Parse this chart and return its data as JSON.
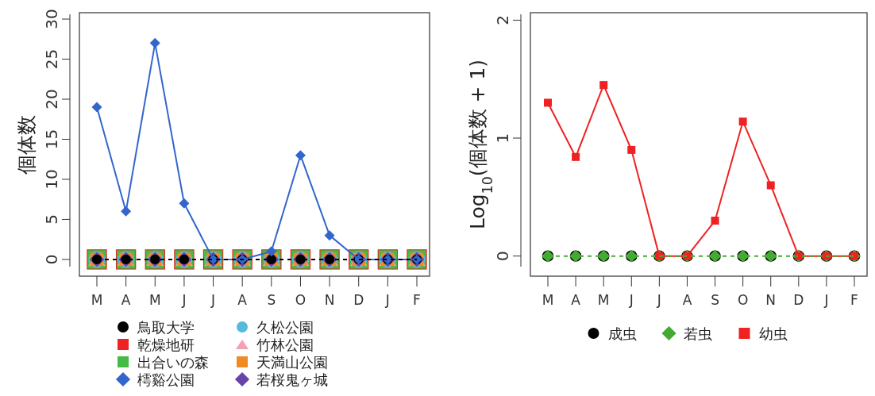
{
  "chart_data": [
    {
      "type": "line",
      "ylabel": "個体数",
      "categories": [
        "M",
        "A",
        "M",
        "J",
        "J",
        "A",
        "S",
        "O",
        "N",
        "D",
        "J",
        "F"
      ],
      "ylim": [
        -0.9,
        30.6
      ],
      "yticks": [
        0,
        5,
        10,
        15,
        20,
        25,
        30
      ],
      "legend": "bottom",
      "series": [
        {
          "name": "鳥取大学",
          "color": "#000000",
          "marker": "circle",
          "line_style": "dashed",
          "values": [
            0,
            0,
            0,
            0,
            0,
            0,
            0,
            0,
            0,
            0,
            0,
            0
          ]
        },
        {
          "name": "乾燥地研",
          "type": "scatter",
          "color": "#ee2222",
          "marker": "square",
          "values": [
            0,
            0,
            0,
            0,
            0,
            0,
            0,
            0,
            0,
            0,
            0,
            0
          ]
        },
        {
          "name": "出合いの森",
          "type": "scatter",
          "color": "#44bb44",
          "marker": "square",
          "values": [
            0,
            0,
            0,
            0,
            0,
            0,
            0,
            0,
            0,
            0,
            0,
            0
          ]
        },
        {
          "name": "樗谿公園",
          "color": "#3366cc",
          "marker": "diamond",
          "line_style": "solid",
          "values": [
            19,
            6,
            27,
            7,
            0,
            0,
            1,
            13,
            3,
            0,
            0,
            0
          ]
        },
        {
          "name": "久松公園",
          "type": "scatter",
          "color": "#55bbdd",
          "marker": "circle",
          "values": [
            0,
            0,
            0,
            0,
            0,
            0,
            0,
            0,
            0,
            0,
            0,
            0
          ]
        },
        {
          "name": "竹林公園",
          "type": "scatter",
          "color": "#f4a0b0",
          "marker": "triangle",
          "values": [
            0,
            0,
            0,
            0,
            0,
            0,
            0,
            0,
            0,
            0,
            0,
            0
          ]
        },
        {
          "name": "天満山公園",
          "type": "scatter",
          "color": "#f08a24",
          "marker": "square",
          "values": [
            0,
            0,
            0,
            0,
            0,
            0,
            0,
            0,
            0,
            0,
            0,
            0
          ]
        },
        {
          "name": "若桜鬼ヶ城",
          "type": "scatter",
          "color": "#6644aa",
          "marker": "diamond",
          "values": [
            0,
            0,
            0,
            0,
            0,
            0,
            0,
            0,
            0,
            0,
            0,
            0
          ]
        }
      ]
    },
    {
      "type": "line",
      "ylabel": "Log$_{10}$(個体数 + 1)",
      "categories": [
        "M",
        "A",
        "M",
        "J",
        "J",
        "A",
        "S",
        "O",
        "N",
        "D",
        "J",
        "F"
      ],
      "ylim": [
        -0.09,
        2.05
      ],
      "yticks": [
        0,
        1,
        2
      ],
      "legend": "bottom",
      "series": [
        {
          "name": "成虫",
          "type": "scatter",
          "color": "#000000",
          "marker": "circle",
          "values": [
            0,
            0,
            0,
            0,
            0,
            0,
            0,
            0,
            0,
            0,
            0,
            0
          ]
        },
        {
          "name": "若虫",
          "color": "#44aa33",
          "marker": "diamond",
          "line_style": "dashed",
          "values": [
            0,
            0,
            0,
            0,
            0,
            0,
            0,
            0,
            0,
            0,
            0,
            0
          ]
        },
        {
          "name": "幼虫",
          "color": "#ee2222",
          "marker": "square",
          "line_style": "solid",
          "values": [
            1.3,
            0.84,
            1.45,
            0.9,
            0,
            0,
            0.3,
            1.14,
            0.6,
            0,
            0,
            0
          ]
        }
      ]
    }
  ]
}
